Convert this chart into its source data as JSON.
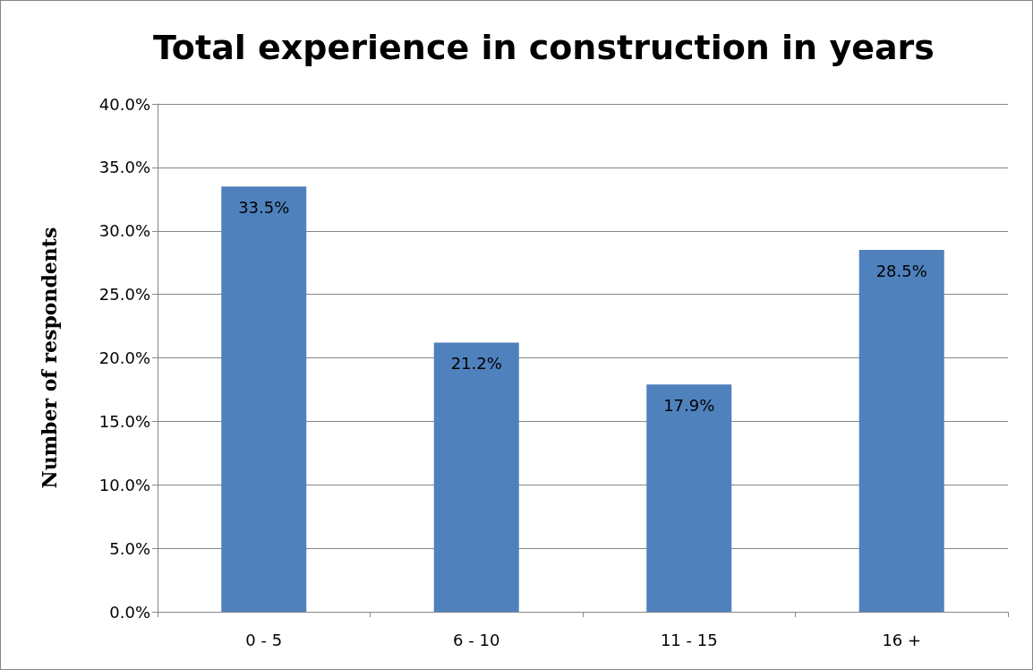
{
  "chart_data": {
    "type": "bar",
    "title": "Total experience in construction in years",
    "ylabel": "Number of respondents",
    "categories": [
      "0 - 5",
      "6 - 10",
      "11 - 15",
      "16 +"
    ],
    "values": [
      33.5,
      21.2,
      17.9,
      28.5
    ],
    "value_labels": [
      "33.5%",
      "21.2%",
      "17.9%",
      "28.5%"
    ],
    "color": "#4f81bd",
    "ylim": [
      0,
      40
    ],
    "yticks": [
      {
        "value": 0,
        "label": "0.0%"
      },
      {
        "value": 5,
        "label": "5.0%"
      },
      {
        "value": 10,
        "label": "10.0%"
      },
      {
        "value": 15,
        "label": "15.0%"
      },
      {
        "value": 20,
        "label": "20.0%"
      },
      {
        "value": 25,
        "label": "25.0%"
      },
      {
        "value": 30,
        "label": "30.0%"
      },
      {
        "value": 35,
        "label": "35.0%"
      },
      {
        "value": 40,
        "label": "40.0%"
      }
    ],
    "grid": "y"
  }
}
